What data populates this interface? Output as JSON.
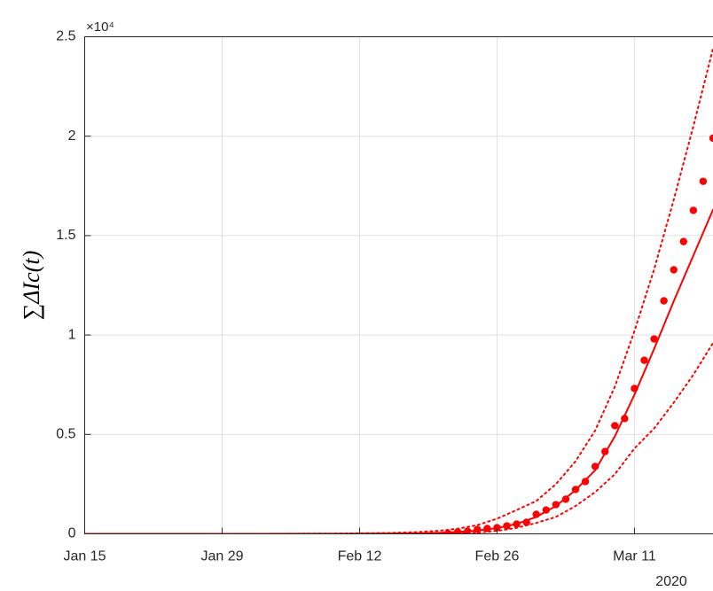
{
  "chart_data": {
    "type": "line",
    "ylabel": "∑ΔIc(t)",
    "y_exponent_label": "×10⁴",
    "x_year_label": "2020",
    "xlim": [
      "2020-01-15",
      "2020-03-19"
    ],
    "xticks": [
      {
        "value": "2020-01-15",
        "label": "Jan 15"
      },
      {
        "value": "2020-01-29",
        "label": "Jan 29"
      },
      {
        "value": "2020-02-12",
        "label": "Feb 12"
      },
      {
        "value": "2020-02-26",
        "label": "Feb 26"
      },
      {
        "value": "2020-03-11",
        "label": "Mar 11"
      }
    ],
    "ylim": [
      0,
      25000
    ],
    "yticks": [
      0,
      {
        "value": 5000,
        "label": "0.5"
      },
      {
        "value": 10000,
        "label": "1"
      },
      {
        "value": 15000,
        "label": "1.5"
      },
      {
        "value": 20000,
        "label": "2"
      },
      {
        "value": 25000,
        "label": "2.5"
      }
    ],
    "grid": true,
    "series": [
      {
        "style": "dots",
        "color": "#ff0000",
        "x": [
          "2020-02-21",
          "2020-02-22",
          "2020-02-23",
          "2020-02-24",
          "2020-02-25",
          "2020-02-26",
          "2020-02-27",
          "2020-02-28",
          "2020-02-29",
          "2020-03-01",
          "2020-03-02",
          "2020-03-03",
          "2020-03-04",
          "2020-03-05",
          "2020-03-06",
          "2020-03-07",
          "2020-03-08",
          "2020-03-09",
          "2020-03-10",
          "2020-03-11",
          "2020-03-12",
          "2020-03-13",
          "2020-03-14",
          "2020-03-15",
          "2020-03-16",
          "2020-03-17",
          "2020-03-18",
          "2020-03-19"
        ],
        "values": [
          20,
          90,
          130,
          220,
          270,
          310,
          400,
          490,
          580,
          980,
          1200,
          1470,
          1740,
          2230,
          2630,
          3390,
          4140,
          5440,
          5800,
          7310,
          8730,
          9800,
          11720,
          13280,
          14700,
          16270,
          17730,
          19900
        ]
      },
      {
        "style": "solid",
        "color": "#ff0000",
        "x": [
          "2020-01-15",
          "2020-02-01",
          "2020-02-10",
          "2020-02-15",
          "2020-02-18",
          "2020-02-20",
          "2020-02-22",
          "2020-02-24",
          "2020-02-26",
          "2020-02-28",
          "2020-03-01",
          "2020-03-03",
          "2020-03-05",
          "2020-03-07",
          "2020-03-09",
          "2020-03-11",
          "2020-03-13",
          "2020-03-15",
          "2020-03-17",
          "2020-03-19"
        ],
        "values": [
          0,
          0,
          5,
          15,
          30,
          52,
          95,
          165,
          290,
          500,
          850,
          1400,
          2200,
          3200,
          4900,
          7000,
          9300,
          11700,
          14000,
          16300
        ]
      },
      {
        "style": "dotted",
        "color": "#ff0000",
        "x": [
          "2020-01-15",
          "2020-02-01",
          "2020-02-10",
          "2020-02-15",
          "2020-02-18",
          "2020-02-20",
          "2020-02-22",
          "2020-02-24",
          "2020-02-26",
          "2020-02-28",
          "2020-03-01",
          "2020-03-03",
          "2020-03-05",
          "2020-03-07",
          "2020-03-09",
          "2020-03-11",
          "2020-03-13",
          "2020-03-15",
          "2020-03-17",
          "2020-03-19"
        ],
        "values": [
          0,
          0,
          15,
          45,
          90,
          150,
          260,
          440,
          760,
          1200,
          1650,
          2500,
          3650,
          5200,
          7400,
          10200,
          13300,
          16800,
          20500,
          24400
        ]
      },
      {
        "style": "dotted",
        "color": "#ff0000",
        "x": [
          "2020-01-15",
          "2020-02-01",
          "2020-02-10",
          "2020-02-15",
          "2020-02-18",
          "2020-02-20",
          "2020-02-22",
          "2020-02-24",
          "2020-02-26",
          "2020-02-28",
          "2020-03-01",
          "2020-03-03",
          "2020-03-05",
          "2020-03-07",
          "2020-03-09",
          "2020-03-11",
          "2020-03-13",
          "2020-03-15",
          "2020-03-17",
          "2020-03-19"
        ],
        "values": [
          0,
          0,
          2,
          5,
          10,
          18,
          32,
          60,
          150,
          300,
          550,
          850,
          1400,
          2100,
          3000,
          4300,
          5300,
          6600,
          8000,
          9600
        ]
      }
    ]
  }
}
